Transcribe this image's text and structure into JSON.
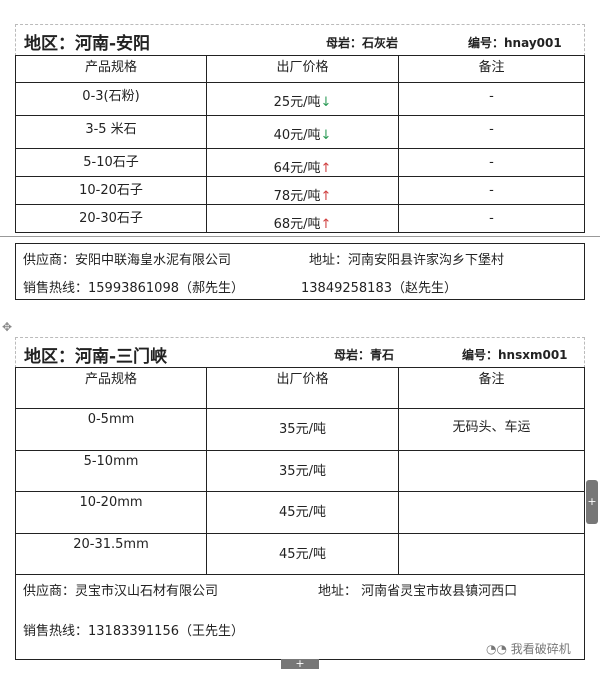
{
  "sections": [
    {
      "region": "地区：河南-安阳",
      "rock": "母岩：石灰岩",
      "code": "编号：hnay001",
      "headers": [
        "产品规格",
        "出厂价格",
        "备注"
      ],
      "rows": [
        {
          "spec": "0-3(石粉)",
          "price": "25元/吨",
          "trend": "↓",
          "trend_dir": "down",
          "note": "-"
        },
        {
          "spec": "3-5 米石",
          "price": "40元/吨",
          "trend": "↓",
          "trend_dir": "down",
          "note": "-"
        },
        {
          "spec": "5-10石子",
          "price": "64元/吨",
          "trend": "↑",
          "trend_dir": "up",
          "note": "-"
        },
        {
          "spec": "10-20石子",
          "price": "78元/吨",
          "trend": "↑",
          "trend_dir": "up",
          "note": "-"
        },
        {
          "spec": "20-30石子",
          "price": "68元/吨",
          "trend": "↑",
          "trend_dir": "up",
          "note": "-"
        }
      ],
      "supplier": "供应商：安阳中联海皇水泥有限公司",
      "address": "地址：河南安阳县许家沟乡下堡村",
      "hotline": "销售热线：15993861098（郝先生）",
      "hotline2": "13849258183（赵先生）"
    },
    {
      "region": "地区：河南-三门峡",
      "rock": "母岩：青石",
      "code": "编号：hnsxm001",
      "headers": [
        "产品规格",
        "出厂价格",
        "备注"
      ],
      "rows": [
        {
          "spec": "0-5mm",
          "price": "35元/吨",
          "note": "无码头、车运"
        },
        {
          "spec": "5-10mm",
          "price": "35元/吨",
          "note": ""
        },
        {
          "spec": "10-20mm",
          "price": "45元/吨",
          "note": ""
        },
        {
          "spec": "20-31.5mm",
          "price": "45元/吨",
          "note": ""
        }
      ],
      "supplier": "供应商：灵宝市汉山石材有限公司",
      "address": "地址： 河南省灵宝市故县镇河西口",
      "hotline": "销售热线：13183391156（王先生）"
    }
  ],
  "footer": {
    "wechat_label": "我看破碎机",
    "icon": "wechat-icon"
  },
  "colors": {
    "down": "#2a9a55",
    "up": "#d04040"
  }
}
